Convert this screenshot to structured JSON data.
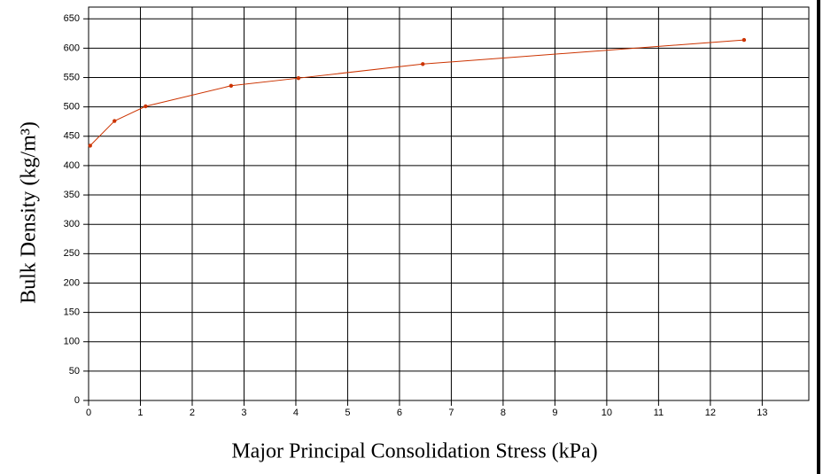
{
  "chart_data": {
    "type": "line",
    "xlabel": "Major Principal Consolidation Stress (kPa)",
    "ylabel": "Bulk Density (kg/m³)",
    "series": [
      {
        "color": "#cc3300",
        "x": [
          0.03,
          0.5,
          1.1,
          2.75,
          4.05,
          6.45,
          12.65
        ],
        "values": [
          434,
          476,
          501,
          536,
          549,
          573,
          614
        ]
      }
    ],
    "xlim": [
      0,
      13.9
    ],
    "ylim": [
      0,
      670
    ],
    "xticks": [
      0,
      1,
      2,
      3,
      4,
      5,
      6,
      7,
      8,
      9,
      10,
      11,
      12,
      13
    ],
    "yticks": [
      0,
      50,
      100,
      150,
      200,
      250,
      300,
      350,
      400,
      450,
      500,
      550,
      600,
      650
    ],
    "grid": true
  }
}
